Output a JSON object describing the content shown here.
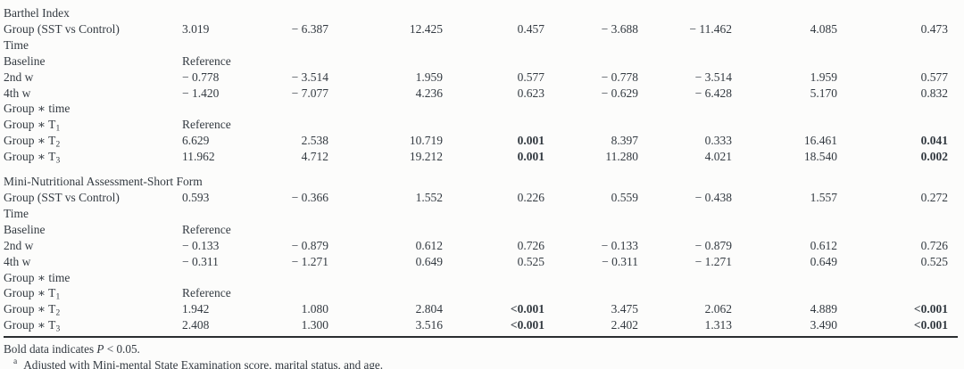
{
  "colors": {
    "text": "#333a41",
    "rule": "#2a2d30",
    "background": "#fcfcfb",
    "bold_significant_values": "#333a41"
  },
  "table": {
    "column_count": 9,
    "sections": [
      {
        "title": "Barthel Index",
        "rows": [
          {
            "label": "Group (SST vs Control)",
            "cells": [
              "3.019",
              "− 6.387",
              "12.425",
              "0.457",
              "− 3.688",
              "− 11.462",
              "4.085",
              "0.473"
            ]
          },
          {
            "label": "Time",
            "cells": [
              "",
              "",
              "",
              "",
              "",
              "",
              "",
              ""
            ]
          },
          {
            "label": "Baseline",
            "cells": [
              "Reference",
              "",
              "",
              "",
              "",
              "",
              "",
              ""
            ]
          },
          {
            "label": "2nd w",
            "cells": [
              "− 0.778",
              "− 3.514",
              "1.959",
              "0.577",
              "− 0.778",
              "− 3.514",
              "1.959",
              "0.577"
            ]
          },
          {
            "label": "4th w",
            "cells": [
              "− 1.420",
              "− 7.077",
              "4.236",
              "0.623",
              "− 0.629",
              "− 6.428",
              "5.170",
              "0.832"
            ]
          },
          {
            "label": "Group ∗ time",
            "cells": [
              "",
              "",
              "",
              "",
              "",
              "",
              "",
              ""
            ]
          },
          {
            "label": "Group ∗ T",
            "label_sub": "1",
            "cells": [
              "Reference",
              "",
              "",
              "",
              "",
              "",
              "",
              ""
            ]
          },
          {
            "label": "Group ∗ T",
            "label_sub": "2",
            "cells": [
              "6.629",
              "2.538",
              "10.719",
              "0.001",
              "8.397",
              "0.333",
              "16.461",
              "0.041"
            ],
            "bold": [
              3,
              7
            ]
          },
          {
            "label": "Group ∗ T",
            "label_sub": "3",
            "cells": [
              "11.962",
              "4.712",
              "19.212",
              "0.001",
              "11.280",
              "4.021",
              "18.540",
              "0.002"
            ],
            "bold": [
              3,
              7
            ]
          }
        ]
      },
      {
        "title": "Mini-Nutritional Assessment-Short Form",
        "rows": [
          {
            "label": "Group (SST vs Control)",
            "cells": [
              "0.593",
              "− 0.366",
              "1.552",
              "0.226",
              "0.559",
              "− 0.438",
              "1.557",
              "0.272"
            ]
          },
          {
            "label": "Time",
            "cells": [
              "",
              "",
              "",
              "",
              "",
              "",
              "",
              ""
            ]
          },
          {
            "label": "Baseline",
            "cells": [
              "Reference",
              "",
              "",
              "",
              "",
              "",
              "",
              ""
            ]
          },
          {
            "label": "2nd w",
            "cells": [
              "− 0.133",
              "− 0.879",
              "0.612",
              "0.726",
              "− 0.133",
              "− 0.879",
              "0.612",
              "0.726"
            ]
          },
          {
            "label": "4th w",
            "cells": [
              "− 0.311",
              "− 1.271",
              "0.649",
              "0.525",
              "− 0.311",
              "− 1.271",
              "0.649",
              "0.525"
            ]
          },
          {
            "label": "Group ∗ time",
            "cells": [
              "",
              "",
              "",
              "",
              "",
              "",
              "",
              ""
            ]
          },
          {
            "label": "Group ∗ T",
            "label_sub": "1",
            "cells": [
              "Reference",
              "",
              "",
              "",
              "",
              "",
              "",
              ""
            ]
          },
          {
            "label": "Group ∗ T",
            "label_sub": "2",
            "cells": [
              "1.942",
              "1.080",
              "2.804",
              "<0.001",
              "3.475",
              "2.062",
              "4.889",
              "<0.001"
            ],
            "bold": [
              3,
              7
            ]
          },
          {
            "label": "Group ∗ T",
            "label_sub": "3",
            "cells": [
              "2.408",
              "1.300",
              "3.516",
              "<0.001",
              "2.402",
              "1.313",
              "3.490",
              "<0.001"
            ],
            "bold": [
              3,
              7
            ]
          }
        ]
      }
    ]
  },
  "notes": {
    "significance": {
      "pre": "Bold data indicates ",
      "italic": "P",
      "post": " < 0.05."
    },
    "footnote_a": {
      "marker": "a",
      "text": "Adjusted with Mini-mental State Examination score, marital status, and age."
    }
  }
}
